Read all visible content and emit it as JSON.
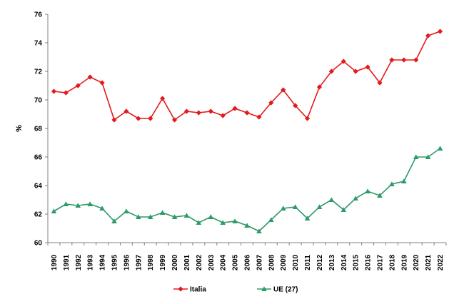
{
  "chart_data": {
    "type": "line",
    "title": "",
    "xlabel": "",
    "ylabel": "%",
    "ylim": [
      60,
      76
    ],
    "yticks": [
      60,
      62,
      64,
      66,
      68,
      70,
      72,
      74,
      76
    ],
    "grid": false,
    "legend_position": "bottom-center",
    "x": [
      "1990",
      "1991",
      "1992",
      "1993",
      "1994",
      "1995",
      "1996",
      "1997",
      "1998",
      "1999",
      "2000",
      "2001",
      "2002",
      "2003",
      "2004",
      "2005",
      "2006",
      "2007",
      "2008",
      "2009",
      "2010",
      "2011",
      "2012",
      "2013",
      "2014",
      "2015",
      "2016",
      "2017",
      "2018",
      "2019",
      "2020",
      "2021",
      "2022"
    ],
    "series": [
      {
        "name": "Italia",
        "color": "#e31a1c",
        "marker": "diamond",
        "values": [
          70.6,
          70.5,
          71.0,
          71.6,
          71.2,
          68.6,
          69.2,
          68.7,
          68.7,
          70.1,
          68.6,
          69.2,
          69.1,
          69.2,
          68.9,
          69.4,
          69.1,
          68.8,
          69.8,
          70.7,
          69.6,
          68.7,
          70.9,
          72.0,
          72.7,
          72.0,
          72.3,
          71.2,
          72.8,
          72.8,
          72.8,
          74.5,
          74.8
        ]
      },
      {
        "name": "UE (27)",
        "color": "#2e9a6a",
        "marker": "triangle",
        "values": [
          62.2,
          62.7,
          62.6,
          62.7,
          62.4,
          61.5,
          62.2,
          61.8,
          61.8,
          62.1,
          61.8,
          61.9,
          61.4,
          61.8,
          61.4,
          61.5,
          61.2,
          60.8,
          61.6,
          62.4,
          62.5,
          61.7,
          62.5,
          63.0,
          62.3,
          63.1,
          63.6,
          63.3,
          64.1,
          64.3,
          66.0,
          66.0,
          66.6
        ]
      }
    ]
  }
}
